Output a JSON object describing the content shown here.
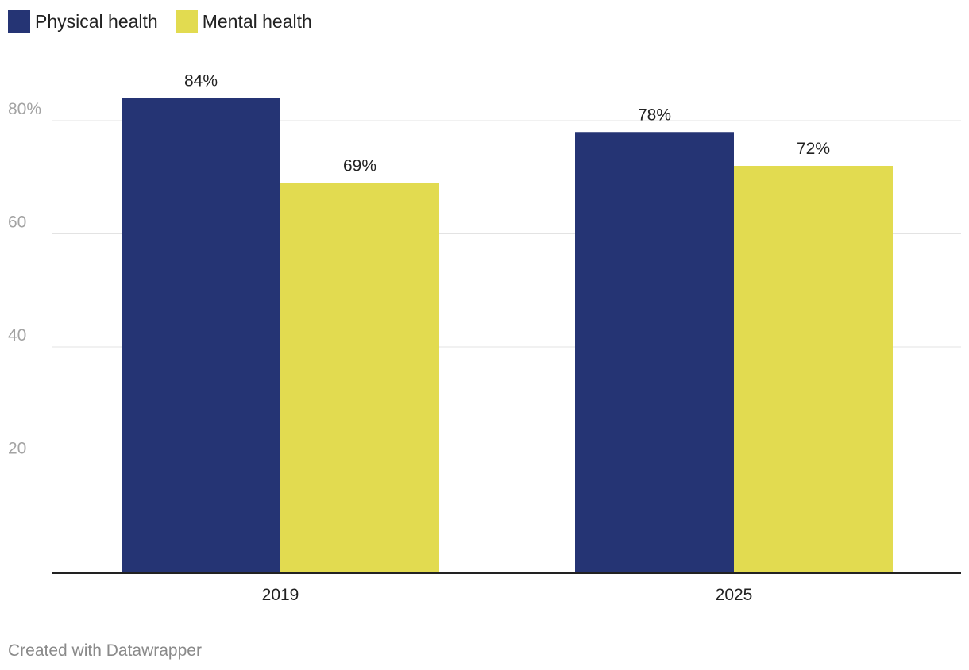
{
  "chart_data": {
    "type": "bar",
    "categories": [
      "2019",
      "2025"
    ],
    "series": [
      {
        "name": "Physical health",
        "color": "#253474",
        "values": [
          84,
          78
        ],
        "labels": [
          "84%",
          "78%"
        ]
      },
      {
        "name": "Mental health",
        "color": "#e2db50",
        "values": [
          69,
          72
        ],
        "labels": [
          "69%",
          "72%"
        ]
      }
    ],
    "ylim": [
      0,
      90
    ],
    "yticks": [
      20,
      40,
      60,
      80
    ],
    "ytick_labels": [
      "20",
      "40",
      "60",
      "80%"
    ],
    "title": "",
    "xlabel": "",
    "ylabel": "",
    "grid": true,
    "legend": "top-left"
  },
  "footer": {
    "credit": "Created with Datawrapper"
  }
}
